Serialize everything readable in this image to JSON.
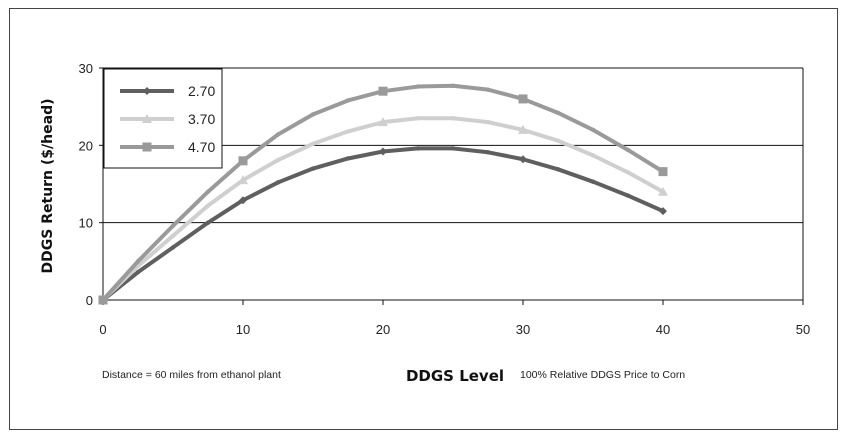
{
  "chart_data": {
    "type": "line",
    "title": "",
    "xlabel": "DDGS Level",
    "ylabel": "DDGS Return ($/head)",
    "xlim": [
      0,
      50
    ],
    "ylim": [
      0,
      30
    ],
    "xticks": [
      0,
      10,
      20,
      30,
      40,
      50
    ],
    "yticks": [
      0,
      10,
      20,
      30
    ],
    "grid": "horizontal",
    "legend": "top-left",
    "notes": {
      "left": "Distance = 60 miles from ethanol plant",
      "right": "100% Relative DDGS Price to Corn"
    },
    "series": [
      {
        "name": "2.70",
        "color": "#5f5f5f",
        "marker": "diamond",
        "x": [
          0,
          2.5,
          5,
          7.5,
          10,
          12.5,
          15,
          17.5,
          20,
          22.5,
          25,
          27.5,
          30,
          32.5,
          35,
          37.5,
          40
        ],
        "y": [
          0,
          3.6,
          6.8,
          10.0,
          12.9,
          15.2,
          17.0,
          18.3,
          19.2,
          19.6,
          19.6,
          19.1,
          18.2,
          16.9,
          15.3,
          13.5,
          11.5
        ]
      },
      {
        "name": "3.70",
        "color": "#cfcfcf",
        "marker": "triangle",
        "x": [
          0,
          2.5,
          5,
          7.5,
          10,
          12.5,
          15,
          17.5,
          20,
          22.5,
          25,
          27.5,
          30,
          32.5,
          35,
          37.5,
          40
        ],
        "y": [
          0,
          4.4,
          8.3,
          12.2,
          15.5,
          18.1,
          20.2,
          21.8,
          23.0,
          23.5,
          23.5,
          23.0,
          22.0,
          20.6,
          18.7,
          16.5,
          14.0
        ]
      },
      {
        "name": "4.70",
        "color": "#9a9a9a",
        "marker": "square",
        "x": [
          0,
          2.5,
          5,
          7.5,
          10,
          12.5,
          15,
          17.5,
          20,
          22.5,
          25,
          27.5,
          30,
          32.5,
          35,
          37.5,
          40
        ],
        "y": [
          0,
          5.0,
          9.6,
          14.0,
          18.0,
          21.4,
          24.0,
          25.8,
          27.0,
          27.6,
          27.7,
          27.2,
          26.0,
          24.2,
          22.0,
          19.4,
          16.6
        ]
      }
    ]
  }
}
